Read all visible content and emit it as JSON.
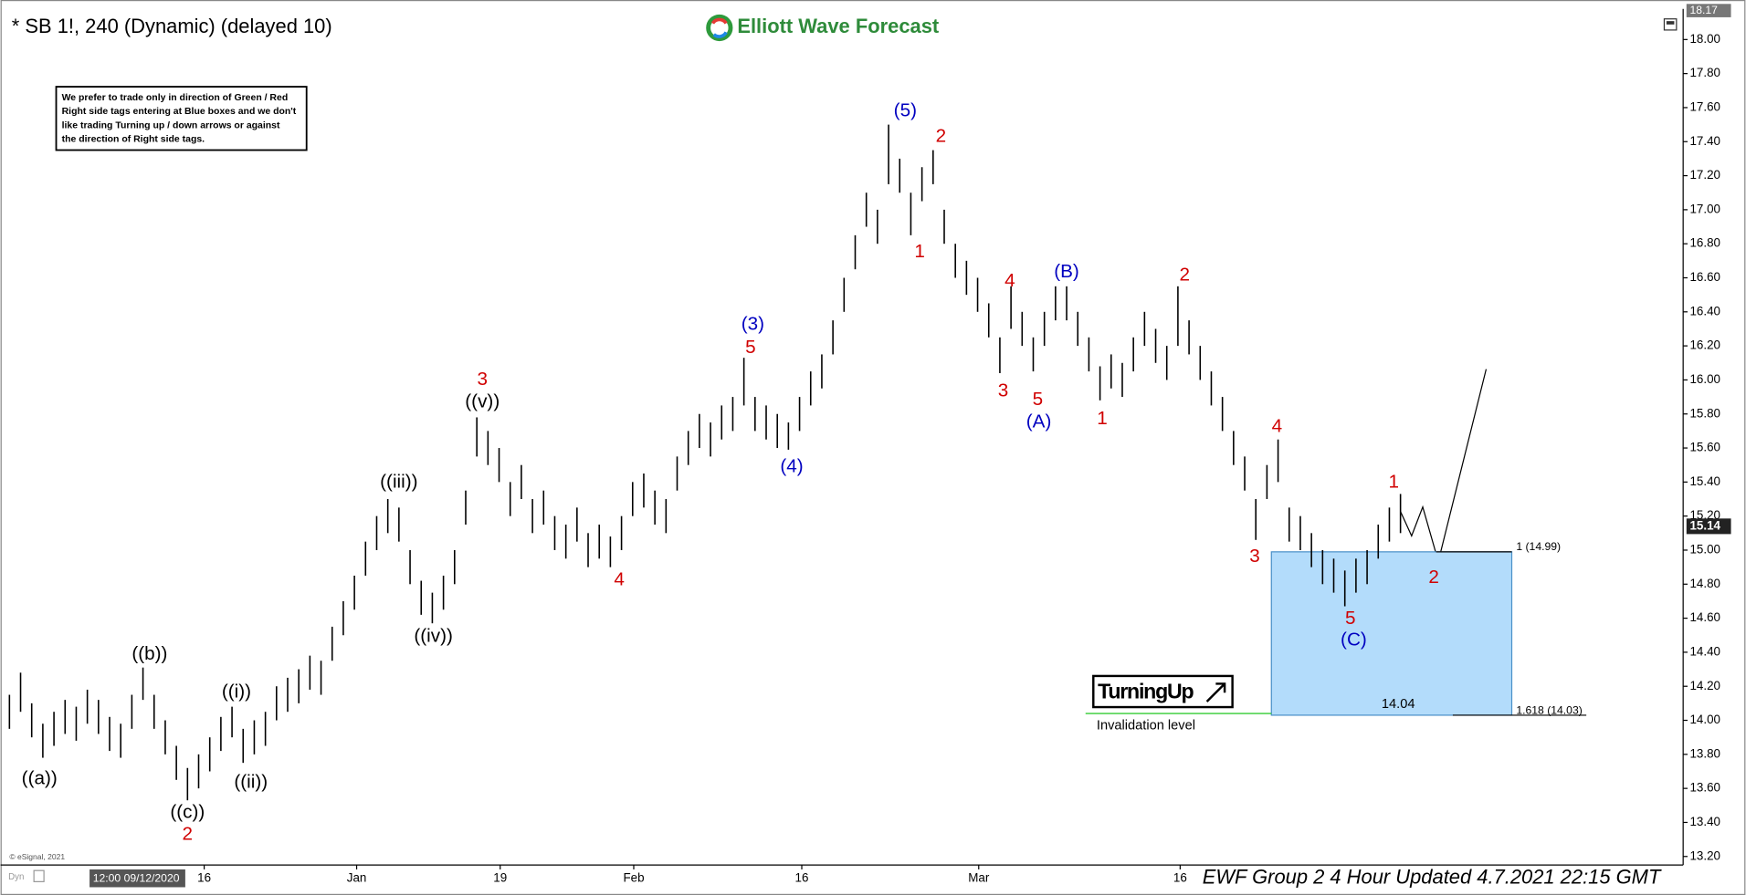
{
  "chart_data": {
    "type": "ohlc",
    "title": "* SB 1!, 240 (Dynamic) (delayed 10)",
    "brand": "Elliott Wave Forecast",
    "disclaimer": [
      "We prefer to trade only in direction of Green / Red",
      "Right side tags entering at Blue boxes and we don't",
      "like trading Turning up / down arrows or against",
      "the direction of Right side tags."
    ],
    "footer": "EWF Group 2 4 Hour Updated 4.7.2021 22:15 GMT",
    "cursor_time": "12:00 09/12/2020",
    "source": "© eSignal, 2021",
    "mode_tag": "Dyn",
    "turning_label": "TurningUp",
    "color": "#000000",
    "high": [
      14.15,
      14.28,
      14.1,
      13.98,
      14.05,
      14.12,
      14.08,
      14.18,
      14.12,
      14.02,
      13.98,
      14.15,
      14.31,
      14.15,
      14.0,
      13.85,
      13.72,
      13.8,
      13.9,
      14.02,
      14.08,
      13.95,
      14.0,
      14.05,
      14.2,
      14.25,
      14.3,
      14.38,
      14.35,
      14.55,
      14.7,
      14.85,
      15.05,
      15.2,
      15.3,
      15.25,
      15.0,
      14.82,
      14.75,
      14.85,
      15.0,
      15.35,
      15.78,
      15.7,
      15.6,
      15.4,
      15.5,
      15.3,
      15.35,
      15.2,
      15.15,
      15.25,
      15.1,
      15.15,
      15.08,
      15.2,
      15.4,
      15.45,
      15.35,
      15.3,
      15.55,
      15.7,
      15.8,
      15.75,
      15.85,
      15.9,
      16.13,
      15.9,
      15.85,
      15.8,
      15.75,
      15.9,
      16.05,
      16.15,
      16.35,
      16.6,
      16.85,
      17.1,
      17.0,
      17.5,
      17.3,
      17.1,
      17.25,
      17.35,
      17.0,
      16.8,
      16.7,
      16.6,
      16.45,
      16.25,
      16.55,
      16.4,
      16.25,
      16.4,
      16.55,
      16.55,
      16.4,
      16.25,
      16.08,
      16.15,
      16.1,
      16.25,
      16.4,
      16.3,
      16.2,
      16.55,
      16.35,
      16.2,
      16.05,
      15.9,
      15.7,
      15.55,
      15.3,
      15.5,
      15.65,
      15.25,
      15.2,
      15.1,
      15.0,
      14.95,
      14.88,
      14.95,
      15.0,
      15.15,
      15.25,
      15.33
    ],
    "low": [
      13.95,
      14.05,
      13.9,
      13.78,
      13.85,
      13.92,
      13.88,
      13.98,
      13.92,
      13.82,
      13.78,
      13.95,
      14.12,
      13.95,
      13.8,
      13.65,
      13.53,
      13.6,
      13.7,
      13.82,
      13.9,
      13.75,
      13.8,
      13.85,
      14.0,
      14.05,
      14.1,
      14.18,
      14.15,
      14.35,
      14.5,
      14.65,
      14.85,
      15.0,
      15.1,
      15.05,
      14.8,
      14.62,
      14.57,
      14.65,
      14.8,
      15.15,
      15.55,
      15.5,
      15.4,
      15.2,
      15.3,
      15.1,
      15.15,
      15.0,
      14.95,
      15.05,
      14.9,
      14.95,
      14.9,
      15.0,
      15.2,
      15.25,
      15.15,
      15.1,
      15.35,
      15.5,
      15.6,
      15.55,
      15.65,
      15.7,
      15.85,
      15.7,
      15.65,
      15.6,
      15.59,
      15.7,
      15.85,
      15.95,
      16.15,
      16.4,
      16.65,
      16.9,
      16.8,
      17.15,
      17.1,
      16.85,
      17.05,
      17.15,
      16.8,
      16.6,
      16.5,
      16.4,
      16.25,
      16.04,
      16.3,
      16.2,
      16.05,
      16.2,
      16.35,
      16.35,
      16.2,
      16.05,
      15.88,
      15.95,
      15.9,
      16.05,
      16.2,
      16.1,
      16.0,
      16.2,
      16.15,
      16.0,
      15.85,
      15.7,
      15.5,
      15.35,
      15.06,
      15.3,
      15.4,
      15.05,
      15.0,
      14.9,
      14.8,
      14.75,
      14.67,
      14.75,
      14.8,
      14.95,
      15.05,
      15.1
    ],
    "xlim": [
      0,
      150.2
    ],
    "xticks": [
      {
        "value": 17.5,
        "label": "16"
      },
      {
        "value": 31.2,
        "label": "Jan"
      },
      {
        "value": 44.1,
        "label": "19"
      },
      {
        "value": 56.1,
        "label": "Feb"
      },
      {
        "value": 71.2,
        "label": "16"
      },
      {
        "value": 87.1,
        "label": "Mar"
      },
      {
        "value": 105.2,
        "label": "16"
      }
    ],
    "ylim": [
      13.15,
      18.18
    ],
    "yticks": [
      {
        "value": 13.2,
        "label": "13.20"
      },
      {
        "value": 13.4,
        "label": "13.40"
      },
      {
        "value": 13.6,
        "label": "13.60"
      },
      {
        "value": 13.8,
        "label": "13.80"
      },
      {
        "value": 14.0,
        "label": "14.00"
      },
      {
        "value": 14.2,
        "label": "14.20"
      },
      {
        "value": 14.4,
        "label": "14.40"
      },
      {
        "value": 14.6,
        "label": "14.60"
      },
      {
        "value": 14.8,
        "label": "14.80"
      },
      {
        "value": 15.0,
        "label": "15.00"
      },
      {
        "value": 15.2,
        "label": "15.20"
      },
      {
        "value": 15.4,
        "label": "15.40"
      },
      {
        "value": 15.6,
        "label": "15.60"
      },
      {
        "value": 15.8,
        "label": "15.80"
      },
      {
        "value": 16.0,
        "label": "16.00"
      },
      {
        "value": 16.2,
        "label": "16.20"
      },
      {
        "value": 16.4,
        "label": "16.40"
      },
      {
        "value": 16.6,
        "label": "16.60"
      },
      {
        "value": 16.8,
        "label": "16.80"
      },
      {
        "value": 17.0,
        "label": "17.00"
      },
      {
        "value": 17.2,
        "label": "17.20"
      },
      {
        "value": 17.4,
        "label": "17.40"
      },
      {
        "value": 17.6,
        "label": "17.60"
      },
      {
        "value": 17.8,
        "label": "17.80"
      },
      {
        "value": 18.0,
        "label": "18.00"
      }
    ],
    "top_price": 18.17,
    "last_price": 15.14,
    "levels": [
      {
        "value": 14.99,
        "label": "1 (14.99)"
      },
      {
        "value": 14.03,
        "label": "1.618 (14.03)"
      }
    ],
    "box_color": "#b3dcfb",
    "invalidation_level": 14.04,
    "invalidation_label": "Invalidation level",
    "invalidation_color": "#33cc33",
    "wave_labels": [
      {
        "text": "((a))",
        "color": "#000000"
      },
      {
        "text": "((b))",
        "color": "#000000"
      },
      {
        "text": "((c))",
        "color": "#000000"
      },
      {
        "text": "2",
        "color": "#d00000"
      },
      {
        "text": "((i))",
        "color": "#000000"
      },
      {
        "text": "((ii))",
        "color": "#000000"
      },
      {
        "text": "((iii))",
        "color": "#000000"
      },
      {
        "text": "((iv))",
        "color": "#000000"
      },
      {
        "text": "((v))",
        "color": "#000000"
      },
      {
        "text": "3",
        "color": "#d00000"
      },
      {
        "text": "4",
        "color": "#d00000"
      },
      {
        "text": "(3)",
        "color": "#0000c0"
      },
      {
        "text": "5",
        "color": "#d00000"
      },
      {
        "text": "(4)",
        "color": "#0000c0"
      },
      {
        "text": "(5)",
        "color": "#0000c0"
      },
      {
        "text": "2",
        "color": "#d00000"
      },
      {
        "text": "1",
        "color": "#d00000"
      },
      {
        "text": "4",
        "color": "#d00000"
      },
      {
        "text": "(B)",
        "color": "#0000c0"
      },
      {
        "text": "3",
        "color": "#d00000"
      },
      {
        "text": "5",
        "color": "#d00000"
      },
      {
        "text": "(A)",
        "color": "#0000c0"
      },
      {
        "text": "1",
        "color": "#d00000"
      },
      {
        "text": "2",
        "color": "#d00000"
      },
      {
        "text": "4",
        "color": "#d00000"
      },
      {
        "text": "3",
        "color": "#d00000"
      },
      {
        "text": "5",
        "color": "#d00000"
      },
      {
        "text": "(C)",
        "color": "#0000c0"
      },
      {
        "text": "1",
        "color": "#d00000"
      },
      {
        "text": "2",
        "color": "#d00000"
      }
    ]
  }
}
